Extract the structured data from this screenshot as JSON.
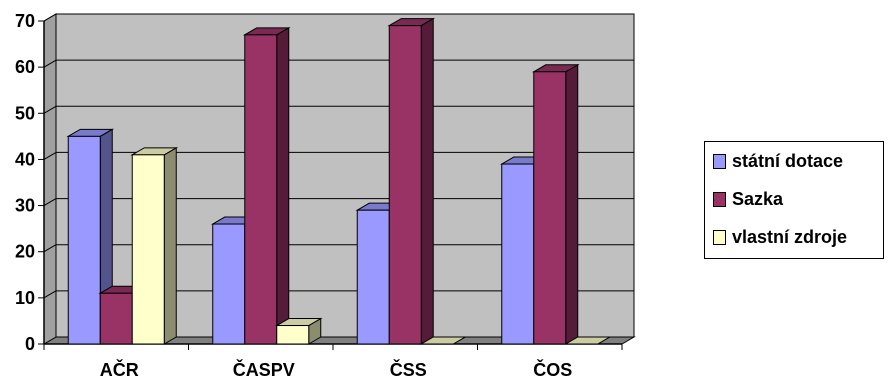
{
  "chart_data": {
    "type": "bar",
    "categories": [
      "AČR",
      "ČASPV",
      "ČSS",
      "ČOS"
    ],
    "series": [
      {
        "name": "státní dotace",
        "values": [
          45,
          26,
          29,
          39
        ],
        "color": "#9999FF"
      },
      {
        "name": "Sazka",
        "values": [
          11,
          67,
          69,
          59
        ],
        "color": "#993366"
      },
      {
        "name": "vlastní zdroje",
        "values": [
          41,
          4,
          0,
          0
        ],
        "color": "#FFFFCC"
      }
    ],
    "ylim": [
      0,
      70
    ],
    "yticks": [
      0,
      10,
      20,
      30,
      40,
      50,
      60,
      70
    ],
    "grid": true,
    "legend": "right",
    "wall_color": "#C0C0C0",
    "title": "",
    "xlabel": "",
    "ylabel": ""
  }
}
